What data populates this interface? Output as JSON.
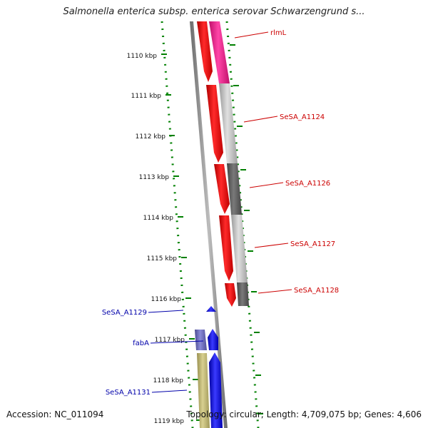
{
  "title": "Salmonella enterica subsp. enterica serovar Schwarzengrund s...",
  "footer": {
    "accession": "Accession: NC_011094",
    "summary": "Topology: circular; Length: 4,709,075 bp; Genes: 4,606"
  },
  "colors": {
    "forward_cds": "#ff0000",
    "reverse_cds": "#0000ff",
    "rna": "#ff1493",
    "backbone": "#808080",
    "ruler": "#008000",
    "label_forward": "#cc0000",
    "label_reverse": "#0000aa"
  },
  "ruler_ticks": [
    "1110 kbp",
    "1111 kbp",
    "1112 kbp",
    "1113 kbp",
    "1114 kbp",
    "1115 kbp",
    "1116 kbp",
    "1117 kbp",
    "1118 kbp",
    "1119 kbp"
  ],
  "gene_labels": {
    "right": [
      "rlmL",
      "SeSA_A1124",
      "SeSA_A1126",
      "SeSA_A1127",
      "SeSA_A1128"
    ],
    "left": [
      "SeSA_A1129",
      "fabA",
      "SeSA_A1131"
    ]
  }
}
